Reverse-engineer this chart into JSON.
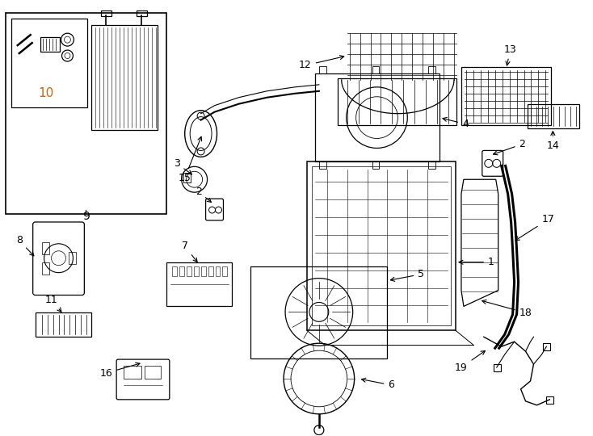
{
  "bg_color": "#ffffff",
  "line_color": "#000000",
  "label_color": "#000000",
  "label10_color": "#cc6600",
  "fig_width": 7.34,
  "fig_height": 5.4,
  "dpi": 100
}
